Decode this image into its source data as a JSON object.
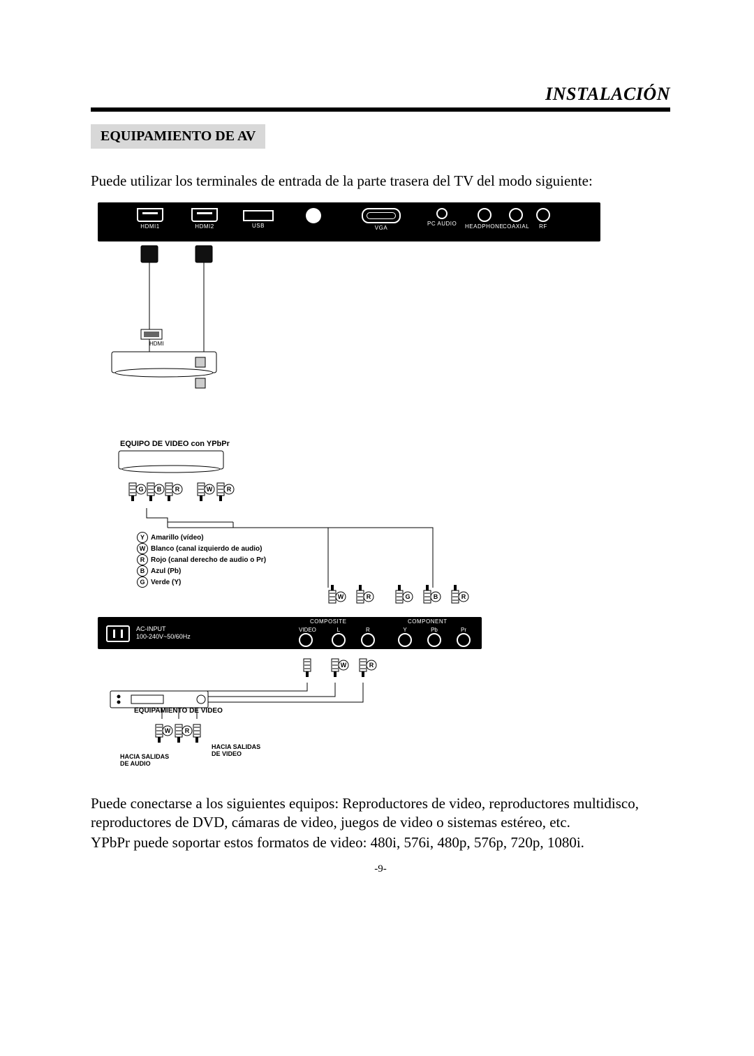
{
  "header": {
    "title": "INSTALACIÓN"
  },
  "section_heading": "EQUIPAMIENTO DE AV",
  "intro": "Puede utilizar los terminales de entrada de la parte trasera del TV del modo siguiente:",
  "top_panel": {
    "ports": {
      "hdmi1": "HDMI1",
      "hdmi2": "HDMI2",
      "usb": "USB",
      "vga": "VGA",
      "pcaudio": "PC AUDIO",
      "headphone": "HEADPHONE",
      "coaxial": "COAXIAL",
      "rf": "RF"
    }
  },
  "bottom_panel": {
    "ac_line1": "AC-INPUT",
    "ac_line2": "100-240V~50/60Hz",
    "composite": {
      "group": "COMPOSITE",
      "video": "VIDEO",
      "l": "L",
      "r": "R"
    },
    "component": {
      "group": "COMPONENT",
      "y": "Y",
      "pb": "Pb",
      "pr": "Pr"
    }
  },
  "ypbpr_title": "EQUIPO DE VIDEO con YPbPr",
  "legend": {
    "y": "Amarillo (vídeo)",
    "w": "Blanco (canal izquierdo de audio)",
    "r": "Rojo (canal derecho de audio o Pr)",
    "b": "Azul (Pb)",
    "g": "Verde (Y)"
  },
  "rca_letters": {
    "y": "Y",
    "w": "W",
    "r": "R",
    "g": "G",
    "b": "B"
  },
  "eq_video_title": "EQUIPAMIENTO DE VIDEO",
  "hacia_audio": "HACIA SALIDAS\nDE AUDIO",
  "hacia_video": "HACIA SALIDAS\nDE VIDEO",
  "hdmi_dev_label": "HDMI",
  "footer1": "Puede conectarse a los siguientes equipos: Reproductores de video, reproductores multidisco, reproductores de DVD, cámaras de video, juegos de video o sistemas estéreo, etc.",
  "footer2": "YPbPr puede soportar estos formatos de video: 480i, 576i, 480p, 576p, 720p, 1080i.",
  "page_number": "-9-",
  "colors": {
    "panel_bg": "#000000",
    "panel_fg": "#ffffff",
    "heading_bg": "#d8d8d8",
    "stroke": "#000000"
  }
}
